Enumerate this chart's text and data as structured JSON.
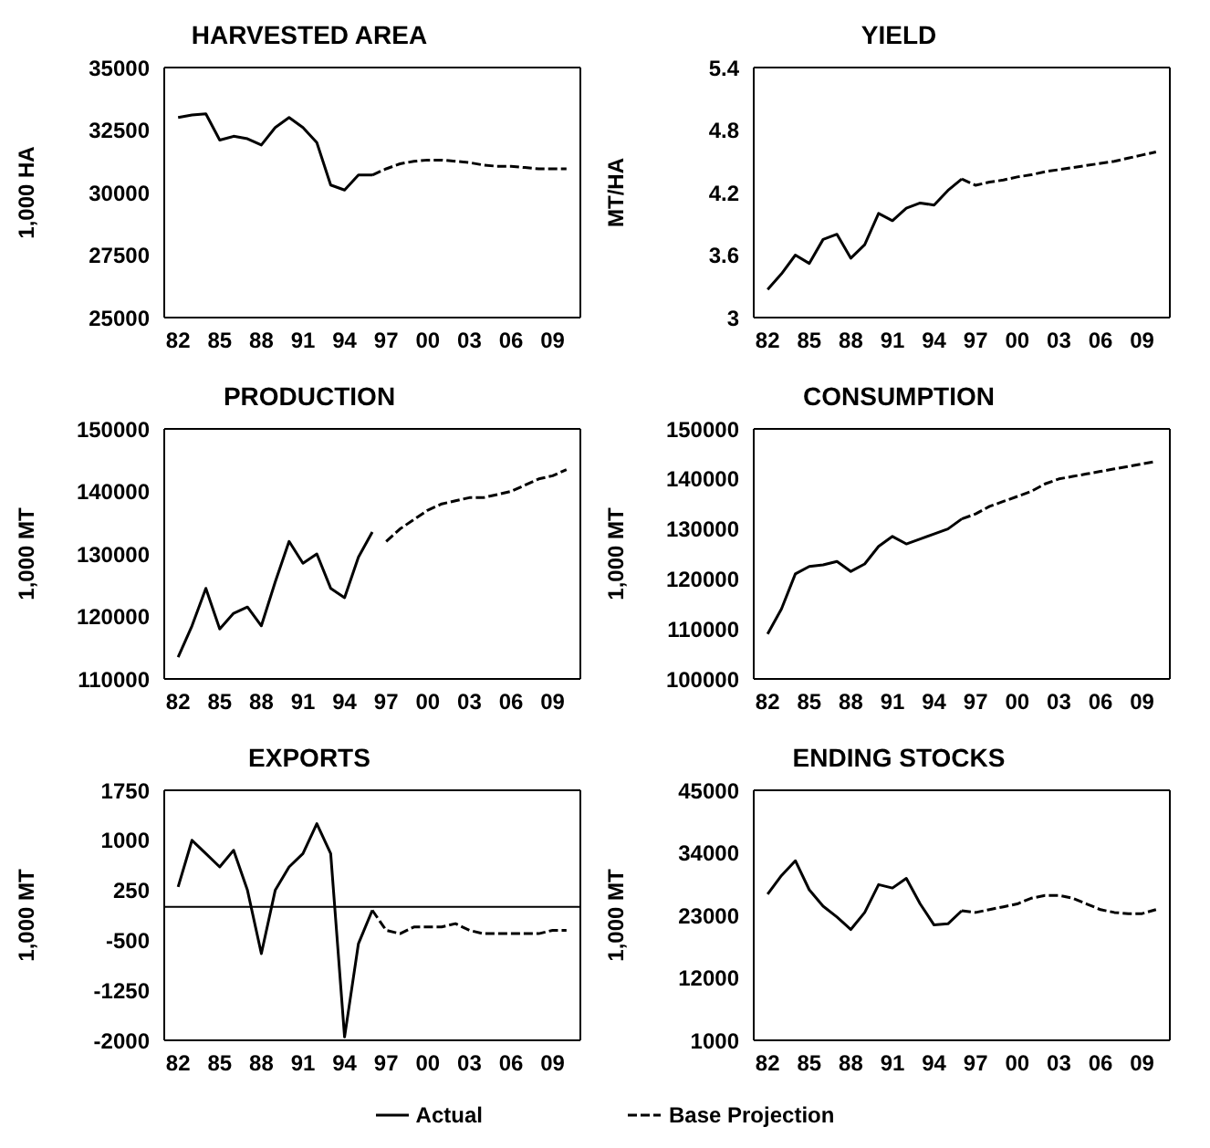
{
  "chart_data": [
    {
      "type": "line",
      "title": "HARVESTED AREA",
      "ylabel": "1,000 HA",
      "categories": [
        "82",
        null,
        null,
        "85",
        null,
        null,
        "88",
        null,
        null,
        "91",
        null,
        null,
        "94",
        null,
        null,
        "97",
        null,
        null,
        "00",
        null,
        null,
        "03",
        null,
        null,
        "06",
        null,
        null,
        "09",
        null
      ],
      "ylim": [
        25000,
        35000
      ],
      "yticks": [
        25000,
        27500,
        30000,
        32500,
        35000
      ],
      "series": [
        {
          "color": "#000000",
          "line_style": "solid",
          "values": [
            33000,
            33100,
            33150,
            32100,
            32250,
            32150,
            31900,
            32600,
            33000,
            32600,
            32000,
            30300,
            30100,
            30700,
            30700,
            null,
            null,
            null,
            null,
            null,
            null,
            null,
            null,
            null,
            null,
            null,
            null,
            null,
            null
          ]
        },
        {
          "color": "#000000",
          "line_style": "dashed",
          "values": [
            null,
            null,
            null,
            null,
            null,
            null,
            null,
            null,
            null,
            null,
            null,
            null,
            null,
            null,
            30700,
            30950,
            31150,
            31250,
            31300,
            31300,
            31250,
            31200,
            31100,
            31050,
            31050,
            31000,
            30950,
            30950,
            30950
          ]
        }
      ]
    },
    {
      "type": "line",
      "title": "YIELD",
      "ylabel": "MT/HA",
      "categories": [
        "82",
        null,
        null,
        "85",
        null,
        null,
        "88",
        null,
        null,
        "91",
        null,
        null,
        "94",
        null,
        null,
        "97",
        null,
        null,
        "00",
        null,
        null,
        "03",
        null,
        null,
        "06",
        null,
        null,
        "09",
        null
      ],
      "ylim": [
        3,
        5.4
      ],
      "yticks": [
        {
          "value": 3,
          "label": "3"
        },
        {
          "value": 3.6,
          "label": "3.6"
        },
        {
          "value": 4.2,
          "label": "4.2"
        },
        {
          "value": 4.8,
          "label": "4.8"
        },
        {
          "value": 5.4,
          "label": "5.4"
        }
      ],
      "series": [
        {
          "color": "#000000",
          "line_style": "solid",
          "values": [
            3.27,
            3.42,
            3.6,
            3.52,
            3.75,
            3.8,
            3.57,
            3.7,
            4.0,
            3.93,
            4.05,
            4.1,
            4.08,
            4.22,
            4.33,
            null,
            null,
            null,
            null,
            null,
            null,
            null,
            null,
            null,
            null,
            null,
            null,
            null,
            null
          ]
        },
        {
          "color": "#000000",
          "line_style": "dashed",
          "values": [
            null,
            null,
            null,
            null,
            null,
            null,
            null,
            null,
            null,
            null,
            null,
            null,
            null,
            null,
            4.33,
            4.27,
            4.3,
            4.32,
            4.35,
            4.37,
            4.4,
            4.42,
            4.44,
            4.46,
            4.48,
            4.5,
            4.53,
            4.56,
            4.59
          ]
        }
      ]
    },
    {
      "type": "line",
      "title": "PRODUCTION",
      "ylabel": "1,000 MT",
      "categories": [
        "82",
        null,
        null,
        "85",
        null,
        null,
        "88",
        null,
        null,
        "91",
        null,
        null,
        "94",
        null,
        null,
        "97",
        null,
        null,
        "00",
        null,
        null,
        "03",
        null,
        null,
        "06",
        null,
        null,
        "09",
        null
      ],
      "ylim": [
        110000,
        150000
      ],
      "yticks": [
        110000,
        120000,
        130000,
        140000,
        150000
      ],
      "series": [
        {
          "color": "#000000",
          "line_style": "solid",
          "values": [
            113500,
            118500,
            124500,
            118000,
            120500,
            121500,
            118500,
            125500,
            132000,
            128500,
            130000,
            124500,
            123000,
            129500,
            133500,
            null,
            null,
            null,
            null,
            null,
            null,
            null,
            null,
            null,
            null,
            null,
            null,
            null,
            null
          ]
        },
        {
          "color": "#000000",
          "line_style": "dashed",
          "values": [
            null,
            null,
            null,
            null,
            null,
            null,
            null,
            null,
            null,
            null,
            null,
            null,
            null,
            null,
            null,
            132000,
            134000,
            135500,
            137000,
            138000,
            138500,
            139000,
            139000,
            139500,
            140000,
            141000,
            142000,
            142500,
            143500
          ]
        }
      ]
    },
    {
      "type": "line",
      "title": "CONSUMPTION",
      "ylabel": "1,000 MT",
      "categories": [
        "82",
        null,
        null,
        "85",
        null,
        null,
        "88",
        null,
        null,
        "91",
        null,
        null,
        "94",
        null,
        null,
        "97",
        null,
        null,
        "00",
        null,
        null,
        "03",
        null,
        null,
        "06",
        null,
        null,
        "09",
        null
      ],
      "ylim": [
        100000,
        150000
      ],
      "yticks": [
        100000,
        110000,
        120000,
        130000,
        140000,
        150000
      ],
      "series": [
        {
          "color": "#000000",
          "line_style": "solid",
          "values": [
            109000,
            114000,
            121000,
            122500,
            122800,
            123500,
            121500,
            123000,
            126500,
            128500,
            127000,
            128000,
            129000,
            130000,
            132000,
            null,
            null,
            null,
            null,
            null,
            null,
            null,
            null,
            null,
            null,
            null,
            null,
            null,
            null
          ]
        },
        {
          "color": "#000000",
          "line_style": "dashed",
          "values": [
            null,
            null,
            null,
            null,
            null,
            null,
            null,
            null,
            null,
            null,
            null,
            null,
            null,
            null,
            132000,
            133000,
            134500,
            135500,
            136500,
            137500,
            139000,
            140000,
            140500,
            141000,
            141500,
            142000,
            142500,
            143000,
            143500
          ]
        }
      ]
    },
    {
      "type": "line",
      "title": "EXPORTS",
      "ylabel": "1,000 MT",
      "categories": [
        "82",
        null,
        null,
        "85",
        null,
        null,
        "88",
        null,
        null,
        "91",
        null,
        null,
        "94",
        null,
        null,
        "97",
        null,
        null,
        "00",
        null,
        null,
        "03",
        null,
        null,
        "06",
        null,
        null,
        "09",
        null
      ],
      "ylim": [
        -2000,
        1750
      ],
      "yticks": [
        -2000,
        -1250,
        -500,
        250,
        1000,
        1750
      ],
      "ref_lines": [
        {
          "axis": "y",
          "value": 0,
          "color": "#000000"
        }
      ],
      "series": [
        {
          "color": "#000000",
          "line_style": "solid",
          "values": [
            300,
            1000,
            800,
            600,
            850,
            250,
            -700,
            250,
            600,
            800,
            1250,
            800,
            -1950,
            -550,
            -50,
            null,
            null,
            null,
            null,
            null,
            null,
            null,
            null,
            null,
            null,
            null,
            null,
            null,
            null
          ]
        },
        {
          "color": "#000000",
          "line_style": "dashed",
          "values": [
            null,
            null,
            null,
            null,
            null,
            null,
            null,
            null,
            null,
            null,
            null,
            null,
            null,
            null,
            -50,
            -350,
            -400,
            -300,
            -300,
            -300,
            -250,
            -350,
            -400,
            -400,
            -400,
            -400,
            -400,
            -350,
            -350
          ]
        }
      ]
    },
    {
      "type": "line",
      "title": "ENDING STOCKS",
      "ylabel": "1,000 MT",
      "categories": [
        "82",
        null,
        null,
        "85",
        null,
        null,
        "88",
        null,
        null,
        "91",
        null,
        null,
        "94",
        null,
        null,
        "97",
        null,
        null,
        "00",
        null,
        null,
        "03",
        null,
        null,
        "06",
        null,
        null,
        "09",
        null
      ],
      "ylim": [
        1000,
        45000
      ],
      "yticks": [
        1000,
        12000,
        23000,
        34000,
        45000
      ],
      "legend": "bottom",
      "series": [
        {
          "name": "Actual",
          "color": "#000000",
          "line_style": "solid",
          "values": [
            26700,
            30000,
            32600,
            27500,
            24600,
            22700,
            20500,
            23500,
            28400,
            27800,
            29500,
            25000,
            21300,
            21500,
            23800,
            null,
            null,
            null,
            null,
            null,
            null,
            null,
            null,
            null,
            null,
            null,
            null,
            null,
            null
          ]
        },
        {
          "name": "Base Projection",
          "color": "#000000",
          "line_style": "dashed",
          "values": [
            null,
            null,
            null,
            null,
            null,
            null,
            null,
            null,
            null,
            null,
            null,
            null,
            null,
            null,
            23800,
            23500,
            24000,
            24500,
            25000,
            26000,
            26500,
            26500,
            26000,
            25000,
            24000,
            23500,
            23300,
            23300,
            24000
          ]
        }
      ]
    }
  ]
}
